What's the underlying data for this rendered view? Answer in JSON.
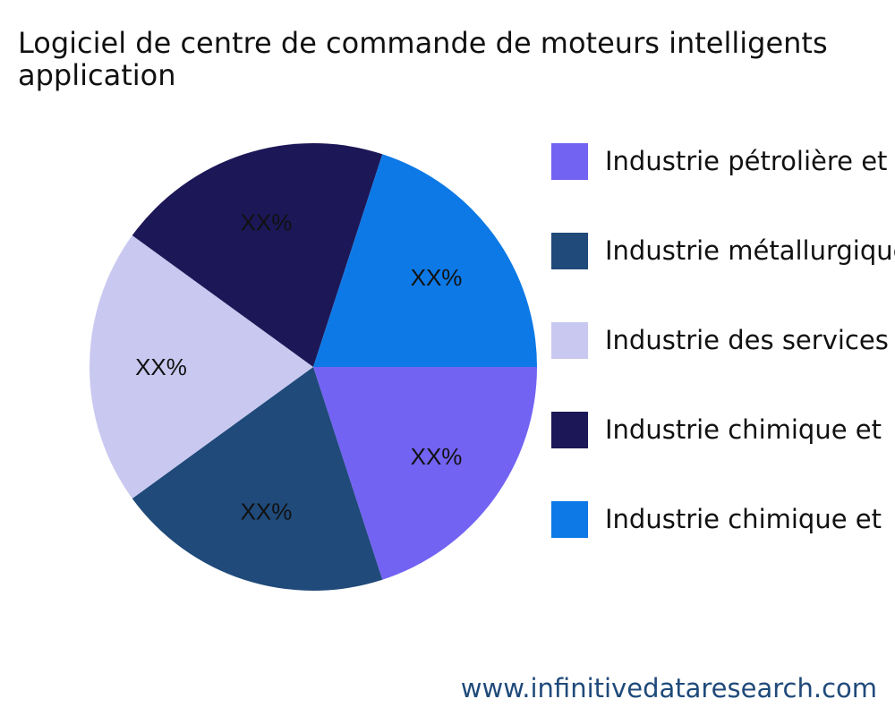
{
  "chart_data": {
    "type": "pie",
    "title_lines": [
      "Logiciel de centre de commande de moteurs intelligents",
      "application"
    ],
    "slices": [
      {
        "legend": "Industrie pétrolière et",
        "label": "XX%",
        "value": 20,
        "color": "#7263f3"
      },
      {
        "legend": "Industrie métallurgique",
        "label": "XX%",
        "value": 20,
        "color": "#1f4a7a"
      },
      {
        "legend": "Industrie des services",
        "label": "XX%",
        "value": 20,
        "color": "#c9c8f0"
      },
      {
        "legend": "Industrie chimique et",
        "label": "XX%",
        "value": 20,
        "color": "#1c1757"
      },
      {
        "legend": "Industrie chimique et",
        "label": "XX%",
        "value": 20,
        "color": "#0d79e6"
      }
    ],
    "legend_position": "right",
    "grid": false
  },
  "footer": {
    "source": "www.infinitivedataresearch.com"
  }
}
